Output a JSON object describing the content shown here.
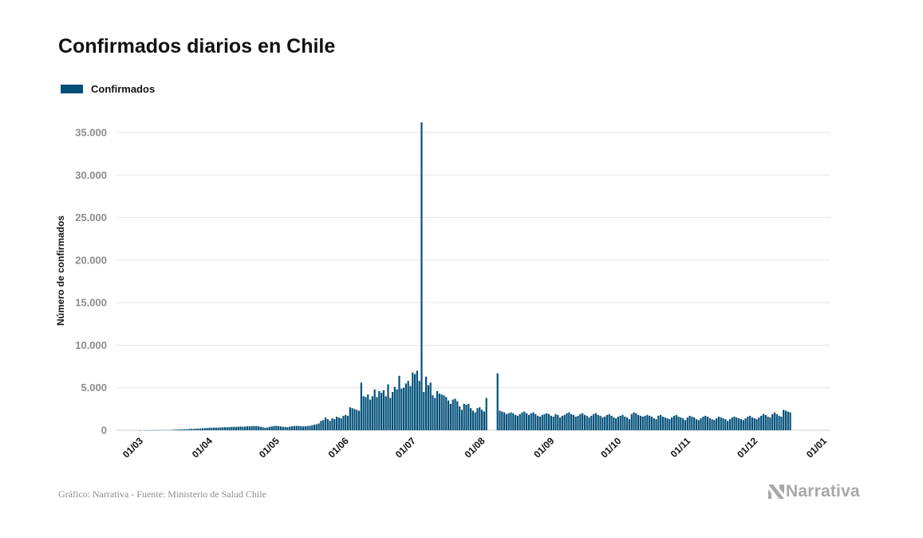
{
  "chart_data": {
    "type": "bar",
    "title": "Confirmados diarios en Chile",
    "ylabel": "Número de confirmados",
    "xlabel": "",
    "ylim": [
      0,
      37000
    ],
    "y_ticks": [
      0,
      5000,
      10000,
      15000,
      20000,
      25000,
      30000,
      35000
    ],
    "y_tick_labels": [
      "0",
      "5.000",
      "10.000",
      "15.000",
      "20.000",
      "25.000",
      "30.000",
      "35.000"
    ],
    "x_ticks": [
      "2020-03-01",
      "2020-04-01",
      "2020-05-01",
      "2020-06-01",
      "2020-07-01",
      "2020-08-01",
      "2020-09-01",
      "2020-10-01",
      "2020-11-01",
      "2020-12-01",
      "2021-01-01"
    ],
    "x_tick_labels": [
      "01/03",
      "01/04",
      "01/05",
      "01/06",
      "01/07",
      "01/08",
      "01/09",
      "01/10",
      "01/11",
      "01/12",
      "01/01"
    ],
    "grid": true,
    "legend_position": "top-left",
    "series": [
      {
        "name": "Confirmados",
        "color": "#004f79",
        "start_date": "2020-03-03",
        "end_date": "2020-12-20",
        "values": [
          1,
          0,
          1,
          2,
          1,
          1,
          2,
          4,
          10,
          10,
          18,
          30,
          20,
          15,
          40,
          55,
          80,
          95,
          100,
          110,
          120,
          130,
          150,
          160,
          170,
          190,
          200,
          210,
          230,
          250,
          270,
          300,
          290,
          310,
          320,
          310,
          330,
          340,
          360,
          350,
          370,
          380,
          400,
          390,
          420,
          430,
          410,
          440,
          460,
          450,
          480,
          500,
          490,
          460,
          400,
          350,
          300,
          320,
          400,
          450,
          500,
          520,
          480,
          450,
          400,
          380,
          360,
          420,
          480,
          500,
          520,
          500,
          480,
          450,
          470,
          500,
          520,
          600,
          650,
          700,
          800,
          1100,
          1200,
          1500,
          1300,
          1100,
          1400,
          1300,
          1600,
          1500,
          1400,
          1700,
          1800,
          1700,
          2700,
          2600,
          2500,
          2400,
          2300,
          5600,
          4000,
          3900,
          4200,
          3600,
          4000,
          4800,
          3900,
          4600,
          4400,
          4700,
          4000,
          5400,
          3800,
          4500,
          5100,
          4800,
          6400,
          4900,
          5000,
          5500,
          5800,
          5200,
          6800,
          6600,
          7000,
          5800,
          36200,
          4500,
          6300,
          5300,
          5600,
          4100,
          3800,
          4600,
          4300,
          4200,
          4100,
          3900,
          3500,
          3100,
          3600,
          3700,
          3400,
          2800,
          2400,
          3100,
          3000,
          3100,
          2600,
          2300,
          2100,
          2600,
          2700,
          2400,
          2200,
          3800,
          0,
          0,
          0,
          0,
          6700,
          2300,
          2200,
          2100,
          1900,
          2000,
          2100,
          2000,
          1800,
          1700,
          1900,
          2100,
          2200,
          2000,
          1800,
          2000,
          2100,
          1900,
          1700,
          1600,
          1800,
          1900,
          2000,
          1900,
          1700,
          1600,
          1900,
          1800,
          1500,
          1700,
          1800,
          2000,
          2100,
          1900,
          1800,
          1600,
          1700,
          1900,
          2000,
          1800,
          1700,
          1500,
          1700,
          1900,
          2000,
          1800,
          1700,
          1500,
          1600,
          1800,
          1900,
          1700,
          1500,
          1400,
          1600,
          1700,
          1800,
          1600,
          1500,
          1300,
          1900,
          2100,
          2000,
          1800,
          1700,
          1600,
          1700,
          1800,
          1700,
          1600,
          1400,
          1300,
          1700,
          1800,
          1600,
          1500,
          1400,
          1300,
          1500,
          1700,
          1800,
          1600,
          1500,
          1400,
          1200,
          1500,
          1700,
          1600,
          1500,
          1300,
          1200,
          1400,
          1600,
          1700,
          1600,
          1400,
          1300,
          1200,
          1400,
          1600,
          1500,
          1400,
          1300,
          1100,
          1300,
          1500,
          1600,
          1500,
          1400,
          1300,
          1200,
          1400,
          1600,
          1700,
          1500,
          1400,
          1300,
          1500,
          1700,
          1900,
          1800,
          1600,
          1500,
          1900,
          2100,
          1900,
          1700,
          1600,
          2400,
          2300,
          2200,
          2100
        ]
      }
    ]
  },
  "legend": {
    "label": "Confirmados"
  },
  "footer": {
    "source": "Gráfico: Narrativa - Fuente: Ministerio de Salud Chile",
    "brand": "Narrativa"
  },
  "colors": {
    "bar": "#004f79",
    "grid": "#e6e6e6",
    "axis_text": "#8c8c8c",
    "brand": "#a8a8a8"
  }
}
